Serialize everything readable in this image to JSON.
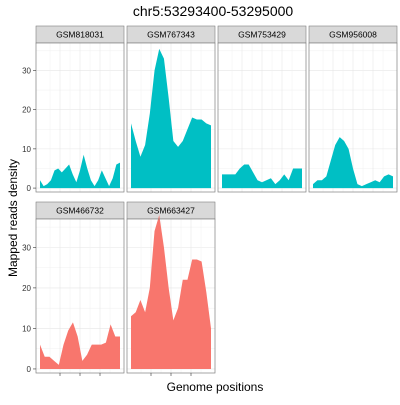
{
  "chart_data": {
    "type": "area",
    "title": "chr5:53293400-53295000",
    "xlabel": "Genome positions",
    "ylabel": "Mapped reads density",
    "ylim": [
      -1,
      37
    ],
    "y_ticks": [
      0,
      10,
      20,
      30
    ],
    "x_tick_labels_shown": false,
    "grid": true,
    "colors": {
      "group1": "#00BFC4",
      "group2": "#F8766D"
    },
    "panels": [
      {
        "name": "GSM818031",
        "group": "group1",
        "values": [
          2,
          0.5,
          1,
          2,
          4.5,
          5,
          4,
          5,
          6,
          3.5,
          1.5,
          4.5,
          8.5,
          5,
          2,
          0.5,
          2,
          4.5,
          2.5,
          0.5,
          2.5,
          6,
          6.5
        ]
      },
      {
        "name": "GSM767343",
        "group": "group1",
        "values": [
          16.5,
          12,
          8,
          11,
          19,
          30,
          35.5,
          33,
          23,
          12,
          10.5,
          12,
          15,
          18,
          17.5,
          17.5,
          16.5,
          16
        ]
      },
      {
        "name": "GSM753429",
        "group": "group1",
        "values": [
          3.5,
          3.5,
          3.5,
          3.5,
          5,
          6,
          6,
          4,
          2,
          1.5,
          2,
          2.5,
          1,
          2,
          3.5,
          2,
          5,
          5,
          5
        ]
      },
      {
        "name": "GSM956008",
        "group": "group1",
        "values": [
          1,
          2,
          2,
          3,
          7,
          11,
          13,
          12,
          10,
          5,
          1,
          0.5,
          1,
          1.5,
          2,
          1.5,
          3,
          3.5,
          3
        ]
      },
      {
        "name": "GSM466732",
        "group": "group2",
        "values": [
          6,
          3,
          3,
          2,
          1,
          6,
          9.5,
          11.5,
          8,
          2,
          3.5,
          6,
          6,
          6,
          6.5,
          11,
          8,
          8
        ]
      },
      {
        "name": "GSM663427",
        "group": "group2",
        "values": [
          13,
          14,
          17,
          14,
          20,
          34,
          38,
          30,
          20,
          12,
          15,
          22,
          22,
          27,
          27,
          26.5,
          19,
          10
        ]
      }
    ]
  }
}
